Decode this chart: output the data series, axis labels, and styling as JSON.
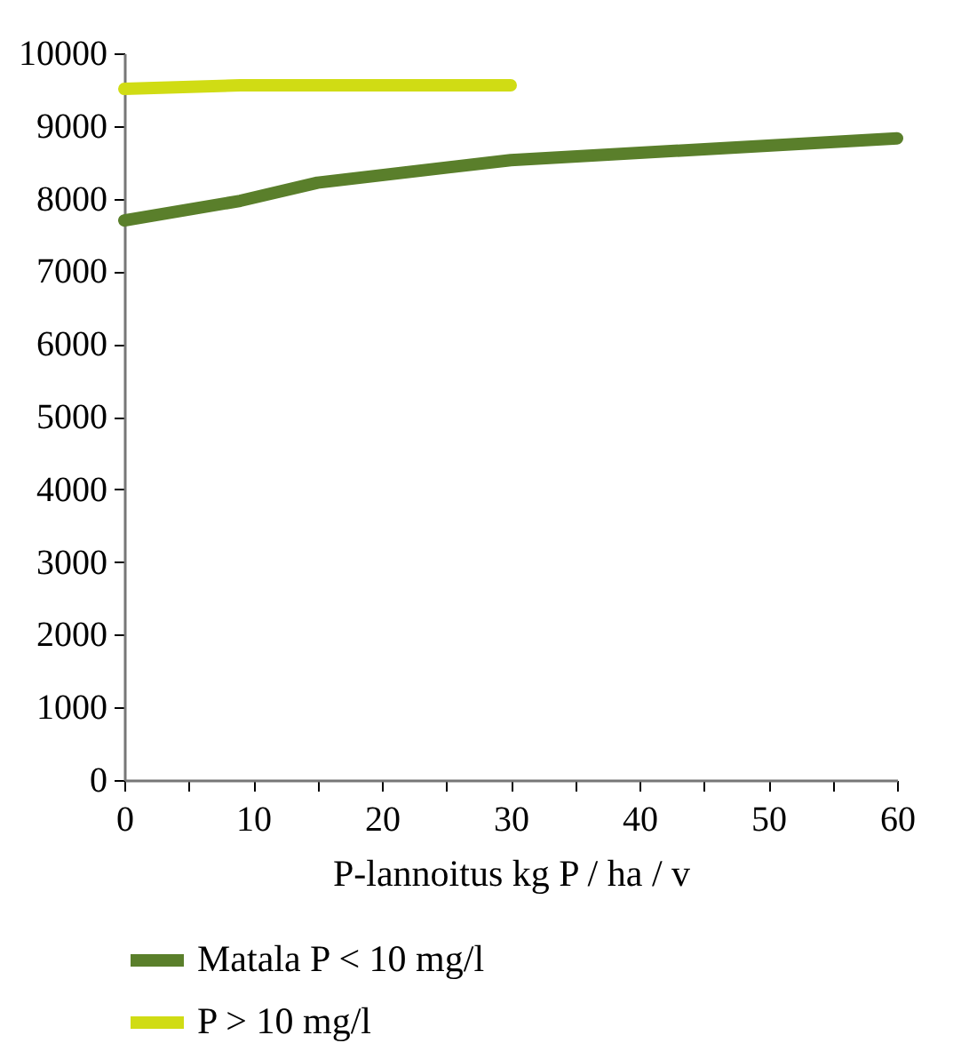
{
  "chart_data": {
    "type": "line",
    "xlabel": "P-lannoitus kg P / ha / v",
    "xlim": [
      0,
      60
    ],
    "xticks": [
      0,
      {
        "value": 5,
        "label": null
      },
      10,
      {
        "value": 15,
        "label": null
      },
      20,
      {
        "value": 25,
        "label": null
      },
      30,
      {
        "value": 35,
        "label": null
      },
      40,
      {
        "value": 45,
        "label": null
      },
      50,
      {
        "value": 55,
        "label": null
      },
      60
    ],
    "ylim": [
      0,
      10000
    ],
    "yticks": [
      0,
      1000,
      2000,
      3000,
      4000,
      5000,
      6000,
      7000,
      8000,
      9000,
      10000
    ],
    "grid": false,
    "legend": "bottom",
    "line_style": "solid",
    "series": [
      {
        "name": "Matala P < 10 mg/l",
        "color": "#5a7f2b",
        "x": [
          0,
          9,
          15,
          30,
          60
        ],
        "values": [
          7700,
          7970,
          8220,
          8530,
          8830
        ]
      },
      {
        "name": "P > 10 mg/l",
        "color": "#d0dc14",
        "x": [
          0,
          9,
          30
        ],
        "values": [
          9510,
          9560,
          9560
        ]
      }
    ]
  }
}
